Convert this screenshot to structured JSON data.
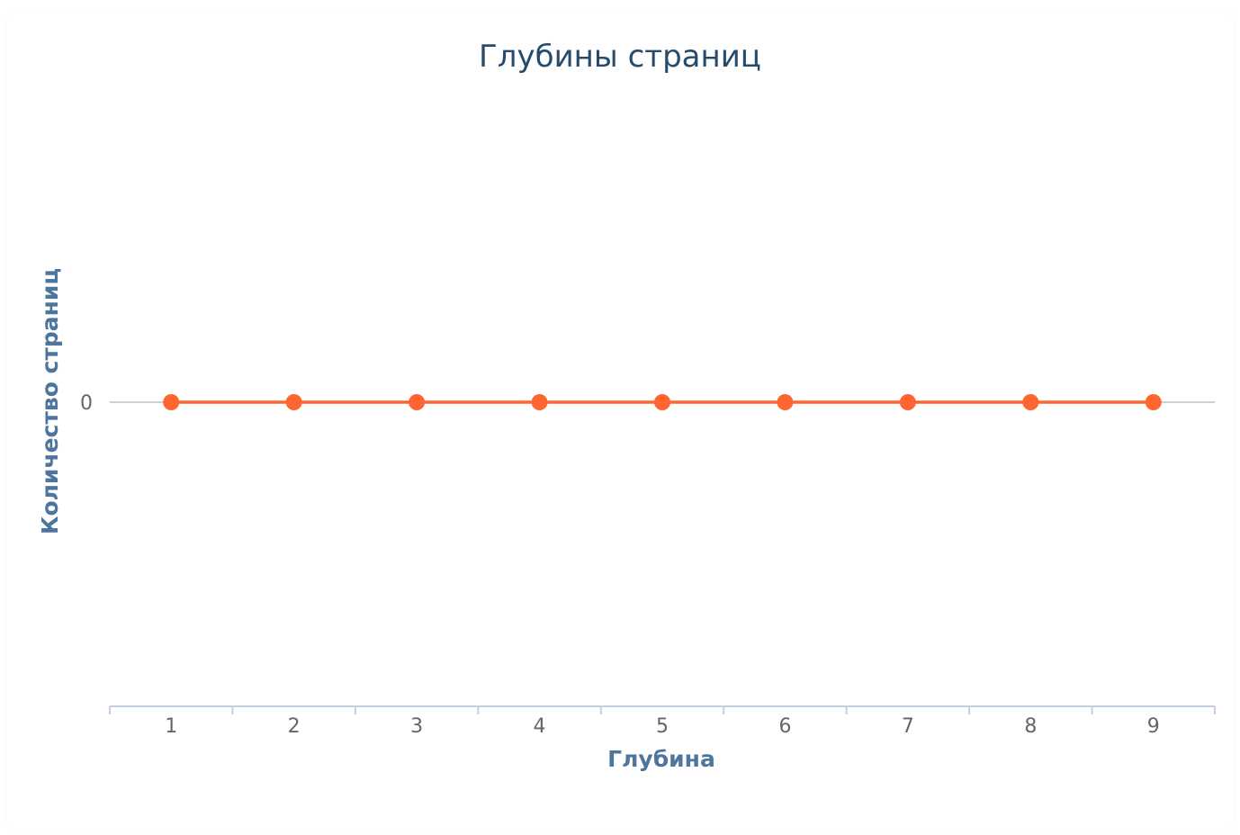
{
  "chart_data": {
    "type": "line",
    "title": "Глубины страниц",
    "xlabel": "Глубина",
    "ylabel": "Количество страниц",
    "categories": [
      "1",
      "2",
      "3",
      "4",
      "5",
      "6",
      "7",
      "8",
      "9"
    ],
    "series": [
      {
        "values": [
          0,
          0,
          0,
          0,
          0,
          0,
          0,
          0,
          0
        ],
        "color": "#ff6530"
      }
    ],
    "y_ticks": [
      "0"
    ],
    "grid": true,
    "legend": "none"
  }
}
